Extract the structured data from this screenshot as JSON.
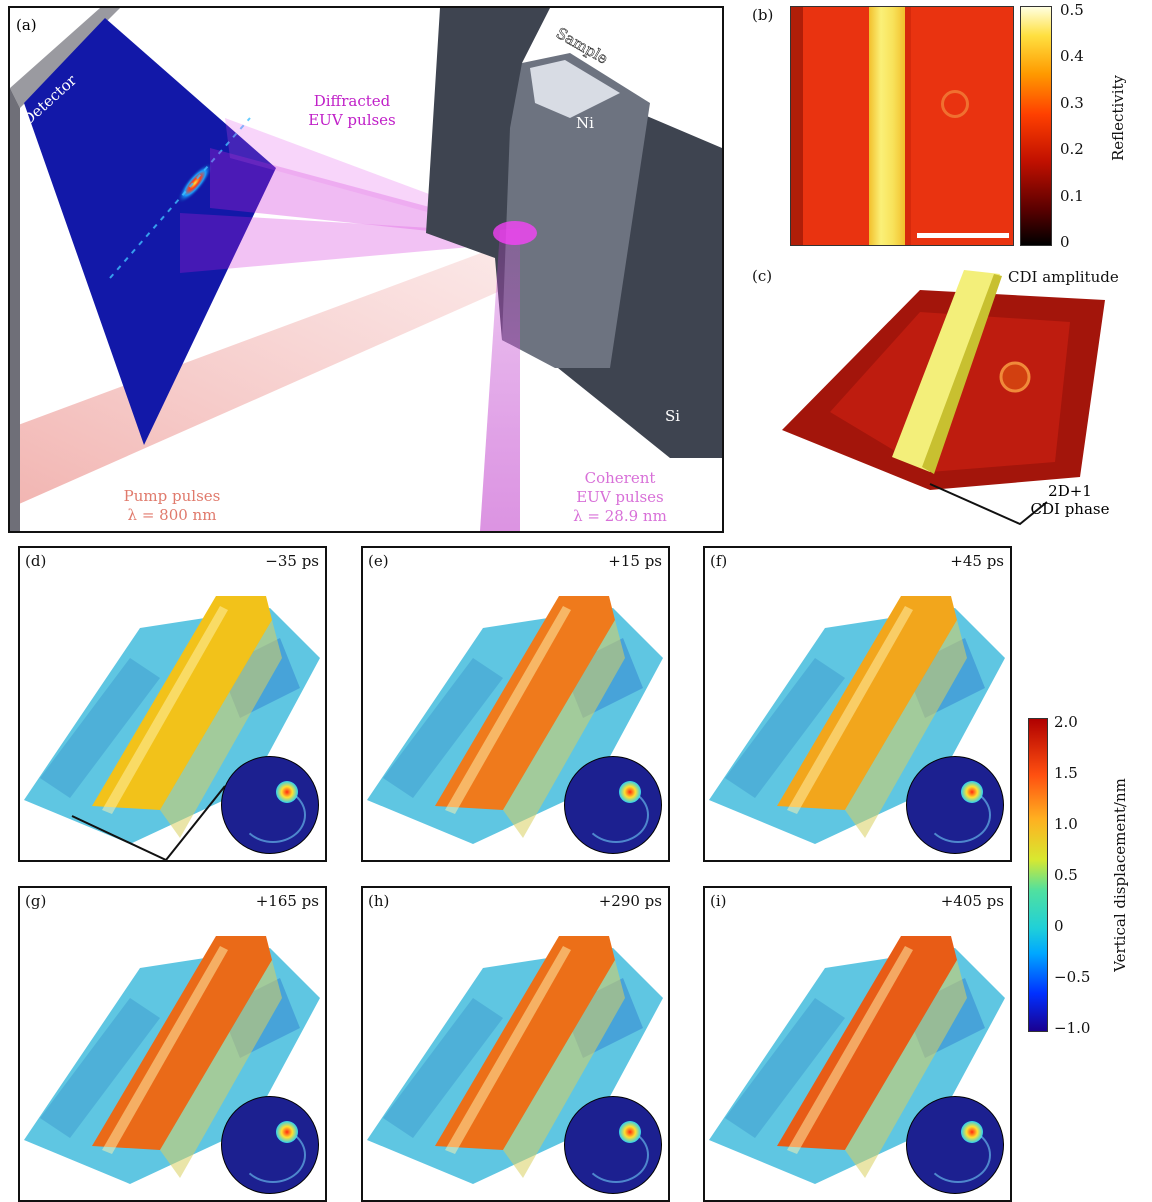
{
  "panel_a": {
    "label": "(a)",
    "detector": "Detector",
    "sample": "Sample",
    "diffracted": [
      "Diffracted",
      "EUV pulses"
    ],
    "ni": "Ni",
    "si": "Si",
    "pump": [
      "Pump pulses",
      "λ = 800 nm"
    ],
    "coherent": [
      "Coherent",
      "EUV pulses",
      "λ = 28.9 nm"
    ]
  },
  "panel_b": {
    "label": "(b)",
    "colorbar": {
      "title": "Reflectivity",
      "ticks": [
        "0.5",
        "0.4",
        "0.3",
        "0.2",
        "0.1",
        "0"
      ],
      "range": [
        0,
        0.5
      ]
    }
  },
  "panel_c": {
    "label": "(c)",
    "amplitude": "CDI amplitude",
    "phase": [
      "2D+1",
      "CDI phase"
    ]
  },
  "snapshots": [
    {
      "label": "(d)",
      "time": "−35 ps",
      "ridge": "#f2c21a"
    },
    {
      "label": "(e)",
      "time": "+15 ps",
      "ridge": "#ef7a1c"
    },
    {
      "label": "(f)",
      "time": "+45 ps",
      "ridge": "#f2a61c"
    },
    {
      "label": "(g)",
      "time": "+165 ps",
      "ridge": "#ea6a18"
    },
    {
      "label": "(h)",
      "time": "+290 ps",
      "ridge": "#ec6f18"
    },
    {
      "label": "(i)",
      "time": "+405 ps",
      "ridge": "#e85c16"
    }
  ],
  "colorbar_disp": {
    "title": "Vertical displacement/nm",
    "ticks": [
      "2.0",
      "1.5",
      "1.0",
      "0.5",
      "0",
      "−0.5",
      "−1.0"
    ],
    "range": [
      -1.0,
      2.0
    ]
  },
  "colors": {
    "ni_stripe": "#f7e65a",
    "substrate": "#e9320f",
    "surface": "#5cc7e2"
  }
}
